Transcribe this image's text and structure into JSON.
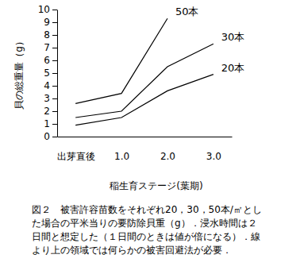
{
  "chart_data": {
    "type": "line",
    "x_label": "稲生育ステージ(葉期)",
    "y_label": "貝の総重量（g）",
    "categories": [
      "出芽直後",
      "1.0",
      "2.0",
      "3.0"
    ],
    "series": [
      {
        "name": "50本",
        "color": "#000000",
        "values": [
          2.6,
          3.4,
          9.3,
          null
        ]
      },
      {
        "name": "30本",
        "color": "#000000",
        "values": [
          1.5,
          2.0,
          5.5,
          7.3
        ]
      },
      {
        "name": "20本",
        "color": "#000000",
        "values": [
          0.9,
          1.5,
          3.6,
          4.9
        ]
      }
    ],
    "ylim": [
      0,
      10
    ],
    "yticks": [
      0,
      1,
      2,
      3,
      4,
      5,
      6,
      7,
      8,
      9,
      10
    ],
    "grid": false,
    "caption": [
      "図２　被害許容苗数をそれぞれ20，30，50本/㎡とし",
      "た場合の平米当りの要防除貝重（g）．浸水時間は２",
      "日間と想定した（１日間のときは値が倍になる）．線",
      "より上の領域では何らかの被害回避法が必要．"
    ]
  }
}
